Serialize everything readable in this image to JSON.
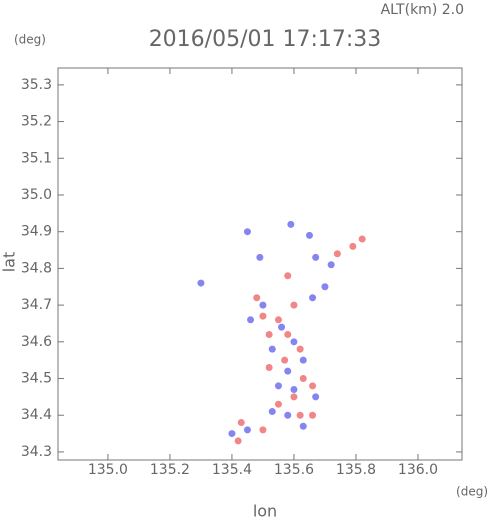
{
  "chart_data": {
    "type": "scatter",
    "title": "2016/05/01 17:17:33",
    "altitude_label": "ALT(km) 2.0",
    "y_unit": "(deg)",
    "x_unit": "(deg)",
    "xlabel": "lon",
    "ylabel": "lat",
    "xlim": [
      134.839,
      136.142
    ],
    "ylim": [
      34.278,
      35.346
    ],
    "xticks": [
      {
        "value": 135,
        "label": "135.0"
      },
      135.2,
      135.4,
      135.6,
      135.8,
      {
        "value": 136,
        "label": "136.0"
      }
    ],
    "yticks": [
      34.3,
      34.4,
      34.5,
      34.6,
      34.7,
      34.8,
      34.9,
      {
        "value": 35,
        "label": "35.0"
      },
      35.1,
      35.2,
      35.3
    ],
    "series": [
      {
        "color": "#f07070",
        "x": [
          135.42,
          135.43,
          135.82,
          135.79,
          135.48,
          135.5,
          135.55,
          135.6,
          135.52,
          135.62,
          135.57,
          135.63,
          135.6,
          135.66,
          135.55,
          135.62,
          135.5,
          135.66,
          135.74,
          135.58,
          135.52,
          135.58
        ],
        "y": [
          34.33,
          34.38,
          34.88,
          34.86,
          34.72,
          34.67,
          34.66,
          34.7,
          34.62,
          34.58,
          34.55,
          34.5,
          34.45,
          34.48,
          34.43,
          34.4,
          34.36,
          34.4,
          34.84,
          34.78,
          34.53,
          34.62
        ]
      },
      {
        "color": "#7070f0",
        "x": [
          135.3,
          135.45,
          135.59,
          135.65,
          135.67,
          135.72,
          135.49,
          135.46,
          135.5,
          135.56,
          135.6,
          135.53,
          135.58,
          135.63,
          135.55,
          135.6,
          135.67,
          135.58,
          135.53,
          135.45,
          135.4,
          135.63,
          135.66,
          135.7
        ],
        "y": [
          34.76,
          34.9,
          34.92,
          34.89,
          34.83,
          34.81,
          34.83,
          34.66,
          34.7,
          34.64,
          34.6,
          34.58,
          34.52,
          34.55,
          34.48,
          34.47,
          34.45,
          34.4,
          34.41,
          34.36,
          34.35,
          34.37,
          34.72,
          34.75
        ]
      }
    ]
  }
}
